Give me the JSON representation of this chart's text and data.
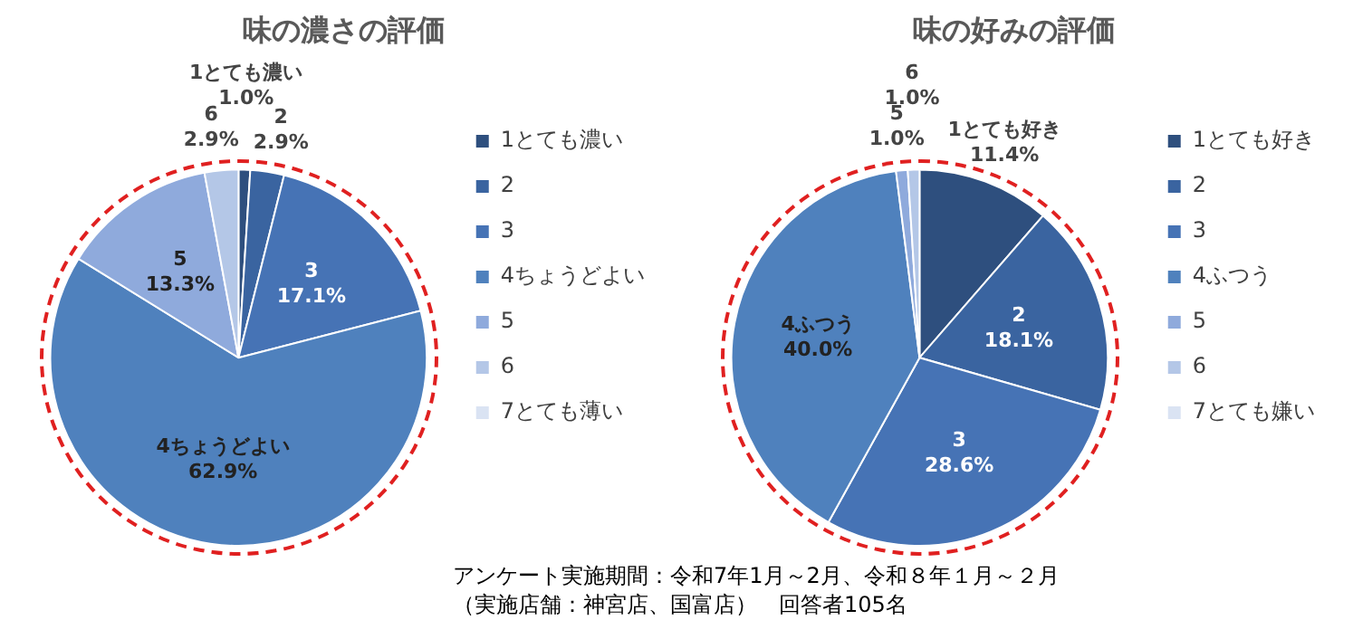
{
  "chart_data": [
    {
      "type": "pie",
      "title": "味の濃さの評価",
      "categories": [
        "1とても濃い",
        "2",
        "3",
        "4ちょうどよい",
        "5",
        "6",
        "7とても薄い"
      ],
      "values": [
        1.0,
        2.9,
        17.1,
        62.9,
        13.3,
        2.9,
        0
      ],
      "value_labels": [
        "1.0%",
        "2.9%",
        "17.1%",
        "62.9%",
        "13.3%",
        "2.9%",
        null
      ],
      "colors": [
        "#2e4f7e",
        "#3a64a0",
        "#4673b5",
        "#4f81bd",
        "#8faadc",
        "#b4c7e7",
        "#dae3f3"
      ],
      "legend": "right"
    },
    {
      "type": "pie",
      "title": "味の好みの評価",
      "categories": [
        "1とても好き",
        "2",
        "3",
        "4ふつう",
        "5",
        "6",
        "7とても嫌い"
      ],
      "values": [
        11.4,
        18.1,
        28.6,
        40.0,
        1.0,
        1.0,
        0
      ],
      "value_labels": [
        "11.4%",
        "18.1%",
        "28.6%",
        "40.0%",
        "1.0%",
        "1.0%",
        null
      ],
      "colors": [
        "#2e4f7e",
        "#3a64a0",
        "#4673b5",
        "#4f81bd",
        "#8faadc",
        "#b4c7e7",
        "#dae3f3"
      ],
      "legend": "right",
      "annotations": [
        "アンケート実施期間：令和7年1月～2月、令和８年１月～２月",
        "（実施店舗：神宮店、国富店）　回答者105名"
      ]
    }
  ]
}
